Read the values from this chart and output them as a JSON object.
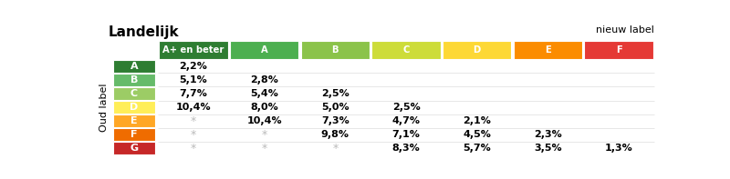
{
  "title": "Landelijk",
  "nieuw_label_text": "nieuw label",
  "oud_label_text": "Oud label",
  "col_headers": [
    "A+ en beter",
    "A",
    "B",
    "C",
    "D",
    "E",
    "F"
  ],
  "col_colors": [
    "#2e7d32",
    "#4caf50",
    "#8bc34a",
    "#cddc39",
    "#fdd835",
    "#fb8c00",
    "#e53935"
  ],
  "row_labels": [
    "A",
    "B",
    "C",
    "D",
    "E",
    "F",
    "G"
  ],
  "row_colors": [
    "#2e7d32",
    "#66bb6a",
    "#9ccc65",
    "#ffee58",
    "#ffa726",
    "#ef6c00",
    "#c62828"
  ],
  "table_data": [
    [
      "2,2%",
      "",
      "",
      "",
      "",
      "",
      ""
    ],
    [
      "5,1%",
      "2,8%",
      "",
      "",
      "",
      "",
      ""
    ],
    [
      "7,7%",
      "5,4%",
      "2,5%",
      "",
      "",
      "",
      ""
    ],
    [
      "10,4%",
      "8,0%",
      "5,0%",
      "2,5%",
      "",
      "",
      ""
    ],
    [
      "*",
      "10,4%",
      "7,3%",
      "4,7%",
      "2,1%",
      "",
      ""
    ],
    [
      "*",
      "*",
      "9,8%",
      "7,1%",
      "4,5%",
      "2,3%",
      ""
    ],
    [
      "*",
      "*",
      "*",
      "8,3%",
      "5,7%",
      "3,5%",
      "1,3%"
    ]
  ],
  "bg_color": "#ffffff",
  "header_text_color": "#ffffff",
  "row_label_text_color": "#ffffff",
  "data_text_color": "#000000",
  "star_color": "#bbbbbb",
  "fig_width": 8.0,
  "fig_height": 1.97
}
